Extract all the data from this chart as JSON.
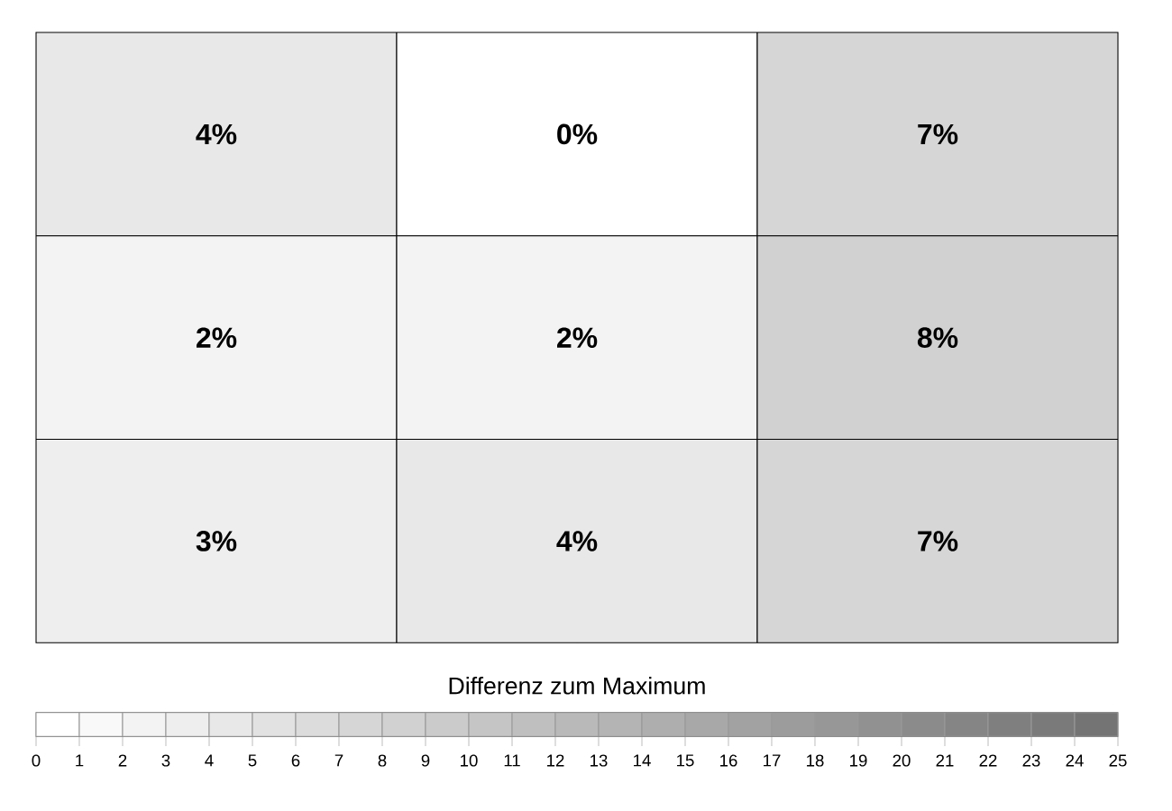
{
  "chart_data": {
    "type": "heatmap",
    "categories": [
      null,
      null,
      null
    ],
    "y_categories": [
      null,
      null,
      null
    ],
    "cells": [
      [
        4,
        0,
        7
      ],
      [
        2,
        2,
        8
      ],
      [
        3,
        4,
        7
      ]
    ],
    "cell_labels": [
      [
        "4%",
        "0%",
        "7%"
      ],
      [
        "2%",
        "2%",
        "8%"
      ],
      [
        "3%",
        "4%",
        "7%"
      ]
    ],
    "data_labels": true,
    "clim": [
      0,
      25
    ],
    "cticks": [
      0,
      1,
      2,
      3,
      4,
      5,
      6,
      7,
      8,
      9,
      10,
      11,
      12,
      13,
      14,
      15,
      16,
      17,
      18,
      19,
      20,
      21,
      22,
      23,
      24,
      25
    ],
    "clabel": "Differenz zum Maximum"
  }
}
